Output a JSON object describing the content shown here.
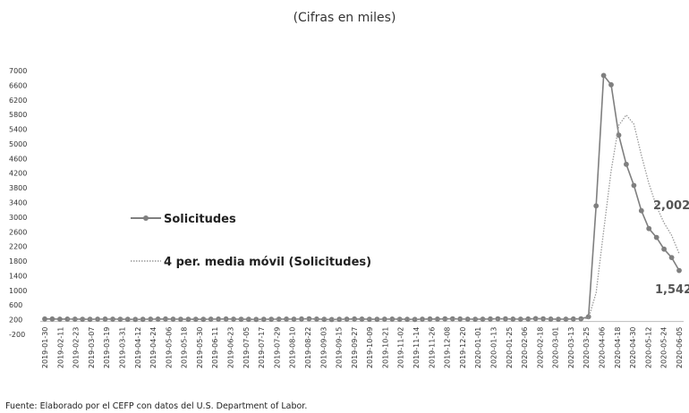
{
  "subtitle": "(Cifras en miles)",
  "source": "Fuente: Elaborado por el CEFP con datos del U.S. Department of Labor.",
  "chart_data": {
    "type": "line",
    "y_ticks": [
      -200,
      200,
      600,
      1000,
      1400,
      1800,
      2200,
      2600,
      3000,
      3400,
      3800,
      4200,
      4600,
      5000,
      5400,
      5800,
      6200,
      6600,
      7000
    ],
    "ylim": [
      -200,
      7000
    ],
    "x_tick_labels": [
      "2019-01-30",
      "2019-02-11",
      "2019-02-23",
      "2019-03-07",
      "2019-03-19",
      "2019-03-31",
      "2019-04-12",
      "2019-04-24",
      "2019-05-06",
      "2019-05-18",
      "2019-05-30",
      "2019-06-11",
      "2019-06-23",
      "2019-07-05",
      "2019-07-17",
      "2019-07-29",
      "2019-08-10",
      "2019-08-22",
      "2019-09-03",
      "2019-09-15",
      "2019-09-27",
      "2019-10-09",
      "2019-10-21",
      "2019-11-02",
      "2019-11-14",
      "2019-11-26",
      "2019-12-08",
      "2019-12-20",
      "2020-01-01",
      "2020-01-13",
      "2020-01-25",
      "2020-02-06",
      "2020-02-18",
      "2020-03-01",
      "2020-03-13",
      "2020-03-25",
      "2020-04-06",
      "2020-04-18",
      "2020-04-30",
      "2020-05-12",
      "2020-05-24",
      "2020-06-05"
    ],
    "series": [
      {
        "name": "Solicitudes",
        "style": "solid-with-markers",
        "color": "#7f7f7f",
        "values": [
          220,
          220,
          215,
          218,
          215,
          212,
          210,
          215,
          218,
          215,
          212,
          210,
          208,
          210,
          215,
          218,
          220,
          215,
          212,
          210,
          212,
          210,
          215,
          218,
          220,
          215,
          212,
          210,
          208,
          210,
          212,
          215,
          218,
          215,
          220,
          225,
          218,
          210,
          205,
          210,
          215,
          220,
          218,
          212,
          210,
          215,
          218,
          212,
          210,
          208,
          215,
          220,
          218,
          222,
          225,
          220,
          215,
          212,
          215,
          220,
          225,
          222,
          218,
          215,
          220,
          230,
          225,
          218,
          212,
          215,
          220,
          225,
          282,
          3307,
          6867,
          6615,
          5237,
          4442,
          3867,
          3176,
          2687,
          2446,
          2126,
          1897,
          1542
        ]
      },
      {
        "name": "4 per. media móvil (Solicitudes)",
        "style": "dotted",
        "color": "#9a9a9a",
        "values": [
          null,
          null,
          null,
          220,
          218,
          216,
          215,
          214,
          214,
          215,
          215,
          214,
          212,
          210,
          210,
          212,
          216,
          218,
          217,
          215,
          213,
          212,
          212,
          214,
          216,
          217,
          216,
          214,
          211,
          210,
          210,
          212,
          214,
          215,
          217,
          219,
          220,
          218,
          213,
          208,
          208,
          213,
          217,
          218,
          216,
          214,
          215,
          216,
          214,
          212,
          211,
          213,
          216,
          218,
          221,
          222,
          220,
          217,
          216,
          218,
          220,
          221,
          220,
          217,
          218,
          221,
          223,
          223,
          219,
          215,
          214,
          218,
          236,
          936,
          2619,
          4268,
          5507,
          5790,
          5540,
          4688,
          3915,
          3293,
          2843,
          2503,
          2002
        ]
      }
    ],
    "data_labels": {
      "moving_avg_last": "2,002",
      "solicitudes_last": "1,542"
    },
    "legend_placement": "center-left",
    "grid": false
  }
}
